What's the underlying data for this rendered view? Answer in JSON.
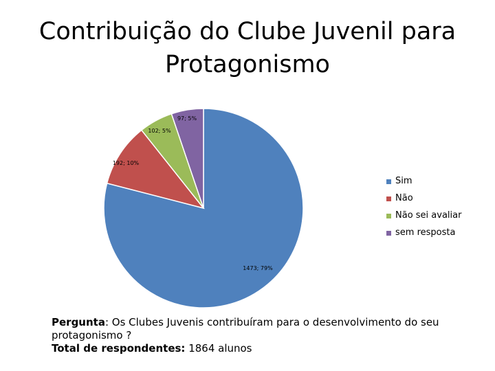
{
  "title_line1": "Contribuição do Clube Juvenil para",
  "title_line2": "Protagonismo",
  "chart_data": {
    "type": "pie",
    "slices": [
      {
        "name": "Sim",
        "value": 1473,
        "percent_label": "1473; 79%",
        "color": "#4F81BD"
      },
      {
        "name": "Não",
        "value": 192,
        "percent_label": "192; 10%",
        "color": "#C0504D"
      },
      {
        "name": "Não sei avaliar",
        "value": 102,
        "percent_label": "102; 5%",
        "color": "#9BBB59"
      },
      {
        "name": "sem resposta",
        "value": 97,
        "percent_label": "97; 5%",
        "color": "#8064A2"
      }
    ],
    "legend_position": "right"
  },
  "footer": {
    "question_label": "Pergunta",
    "question_text": ": Os Clubes Juvenis contribuíram para o desenvolvimento do seu protagonismo ?",
    "total_label": "Total de respondentes:",
    "total_value": " 1864 alunos"
  }
}
